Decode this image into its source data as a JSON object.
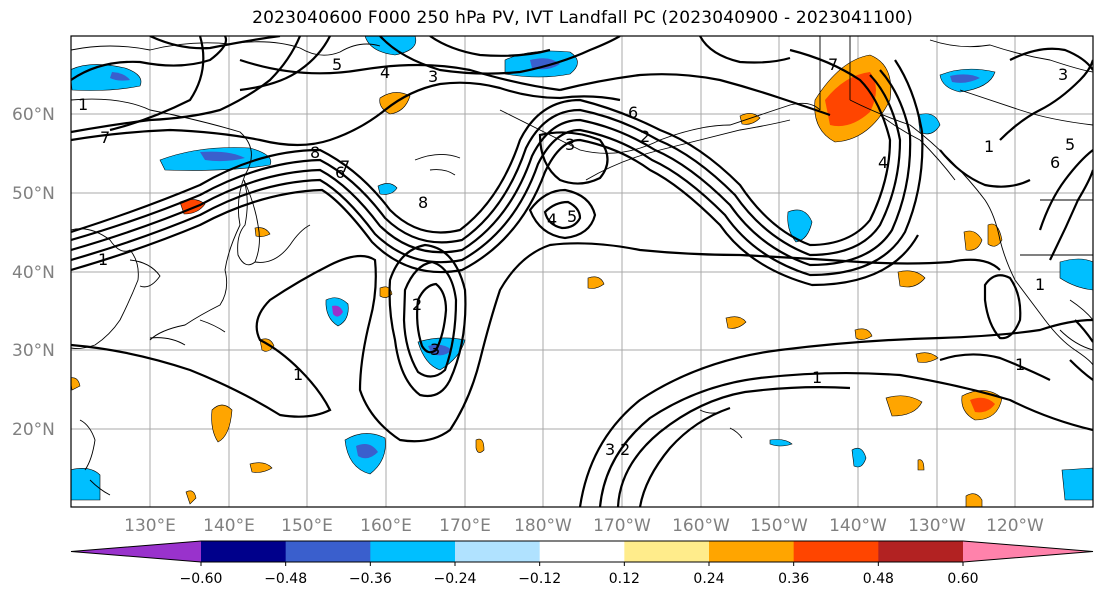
{
  "title": "2023040600 F000 250 hPa PV, IVT Landfall PC (2023040900 - 2023041100)",
  "lat_labels": [
    "60°N",
    "50°N",
    "40°N",
    "30°N",
    "20°N"
  ],
  "lon_labels": [
    "130°E",
    "140°E",
    "150°E",
    "160°E",
    "170°E",
    "180°W",
    "170°W",
    "160°W",
    "150°W",
    "140°W",
    "130°W",
    "120°W"
  ],
  "contour_labels": [
    "5",
    "4",
    "3",
    "7",
    "6",
    "8",
    "1",
    "2",
    "3",
    "1",
    "2",
    "3",
    "4",
    "5",
    "6",
    "7",
    "8",
    "1",
    "3",
    "2",
    "1",
    "4",
    "5",
    "1",
    "7",
    "6",
    "3",
    "1",
    "1"
  ],
  "colorbar": {
    "tick_labels": [
      "−0.60",
      "−0.48",
      "−0.36",
      "−0.24",
      "−0.12",
      "0.12",
      "0.24",
      "0.36",
      "0.48",
      "0.60"
    ],
    "colors": [
      "#9932cc",
      "#00008b",
      "#3a5fcd",
      "#00bfff",
      "#b0e2ff",
      "#ffffff",
      "#ffec8b",
      "#ffa500",
      "#ff4500",
      "#b22222",
      "#ff82ab"
    ]
  }
}
